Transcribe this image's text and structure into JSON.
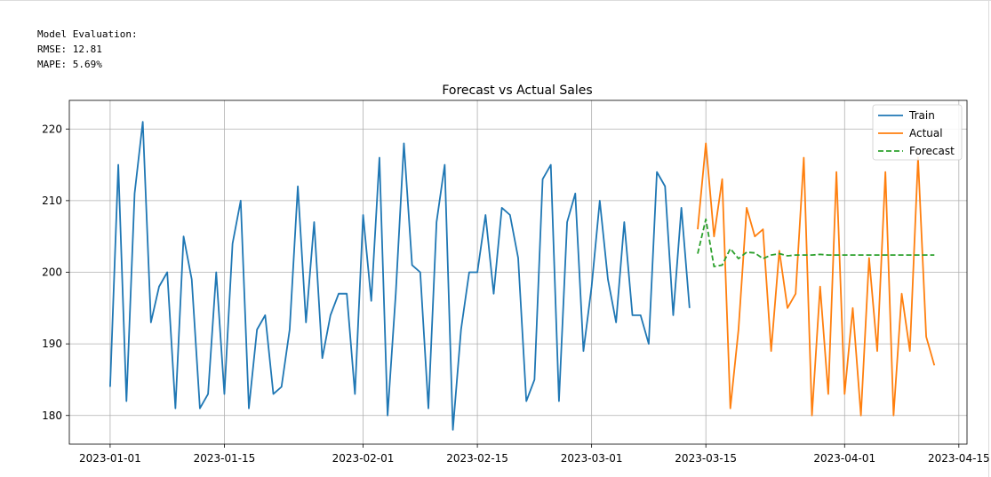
{
  "evaluation": {
    "heading": "Model Evaluation:",
    "rmse": "RMSE: 12.81",
    "mape": "MAPE: 5.69%"
  },
  "chart_data": {
    "type": "line",
    "title": "Forecast vs Actual Sales",
    "xlabel": "",
    "ylabel": "",
    "x_type": "date",
    "xlim": [
      "2022-12-27",
      "2023-04-16"
    ],
    "ylim": [
      176,
      224
    ],
    "x_ticks": [
      "2023-01-01",
      "2023-01-15",
      "2023-02-01",
      "2023-02-15",
      "2023-03-01",
      "2023-03-15",
      "2023-04-01",
      "2023-04-15"
    ],
    "y_ticks": [
      180,
      190,
      200,
      210,
      220
    ],
    "grid": true,
    "legend_position": "top-right",
    "series": [
      {
        "name": "Train",
        "color": "#1f77b4",
        "style": "solid",
        "start_date": "2023-01-01",
        "values": [
          184,
          215,
          182,
          211,
          221,
          193,
          198,
          200,
          181,
          205,
          199,
          181,
          183,
          200,
          183,
          204,
          210,
          181,
          192,
          194,
          183,
          184,
          192,
          212,
          193,
          207,
          188,
          194,
          197,
          197,
          183,
          208,
          196,
          216,
          180,
          197,
          218,
          201,
          200,
          181,
          207,
          215,
          178,
          192,
          200,
          200,
          208,
          197,
          209,
          208,
          202,
          182,
          185,
          213,
          215,
          182,
          207,
          211,
          189,
          198,
          210,
          199,
          193,
          207,
          194,
          194,
          190,
          214,
          212,
          194,
          209,
          195
        ]
      },
      {
        "name": "Actual",
        "color": "#ff7f0e",
        "style": "solid",
        "start_date": "2023-03-14",
        "values": [
          206,
          218,
          205,
          213,
          181,
          192,
          209,
          205,
          206,
          189,
          203,
          195,
          197,
          216,
          180,
          198,
          183,
          214,
          183,
          195,
          180,
          202,
          189,
          214,
          180,
          197,
          189,
          216,
          191,
          187
        ]
      },
      {
        "name": "Forecast",
        "color": "#2ca02c",
        "style": "dashed",
        "start_date": "2023-03-14",
        "values": [
          202.6,
          207.4,
          200.8,
          201.0,
          203.3,
          201.9,
          202.8,
          202.7,
          201.9,
          202.4,
          202.6,
          202.3,
          202.4,
          202.4,
          202.4,
          202.5,
          202.4,
          202.4,
          202.4,
          202.4,
          202.4,
          202.4,
          202.4,
          202.4,
          202.4,
          202.4,
          202.4,
          202.4,
          202.4,
          202.4
        ]
      }
    ]
  }
}
